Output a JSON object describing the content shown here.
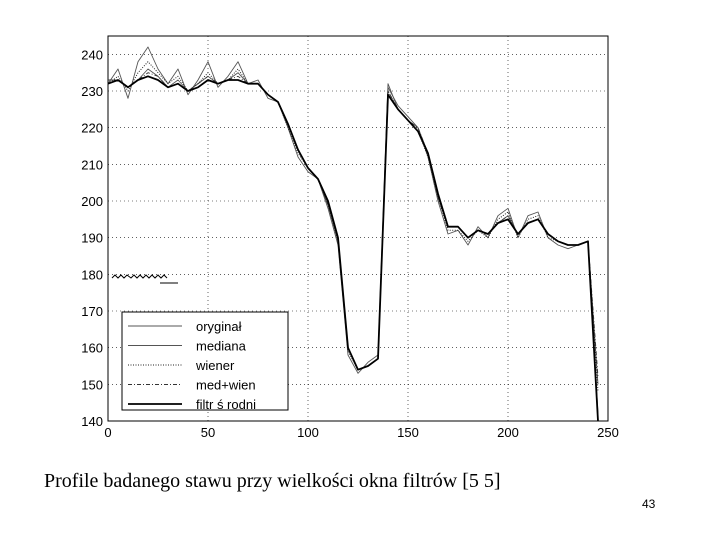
{
  "caption": "Profile badanego stawu przy wielkości okna filtrów [5 5]",
  "page_number": "43",
  "chart_data": {
    "type": "line",
    "title": "",
    "xlabel": "",
    "ylabel": "",
    "xlim": [
      0,
      250
    ],
    "ylim": [
      140,
      245
    ],
    "x_ticks": [
      0,
      50,
      100,
      150,
      200,
      250
    ],
    "y_ticks": [
      140,
      150,
      160,
      170,
      180,
      190,
      200,
      210,
      220,
      230,
      240
    ],
    "grid": true,
    "legend_position": "bottom-left",
    "x": [
      0,
      5,
      10,
      15,
      20,
      25,
      30,
      35,
      40,
      45,
      50,
      55,
      60,
      65,
      70,
      75,
      80,
      85,
      90,
      95,
      100,
      105,
      110,
      115,
      120,
      125,
      130,
      135,
      140,
      145,
      150,
      155,
      160,
      165,
      170,
      175,
      180,
      185,
      190,
      195,
      200,
      205,
      210,
      215,
      220,
      225,
      230,
      235,
      240,
      245
    ],
    "series": [
      {
        "name": "oryginał",
        "style": "solid-thin",
        "values": [
          232,
          236,
          228,
          238,
          242,
          236,
          232,
          236,
          229,
          233,
          238,
          231,
          234,
          238,
          232,
          233,
          228,
          227,
          220,
          212,
          208,
          206,
          198,
          188,
          158,
          153,
          156,
          158,
          232,
          225,
          222,
          220,
          212,
          200,
          191,
          192,
          188,
          193,
          190,
          196,
          198,
          190,
          196,
          197,
          190,
          188,
          187,
          188,
          189,
          142
        ]
      },
      {
        "name": "mediana",
        "style": "solid-thin",
        "values": [
          233,
          233,
          231,
          233,
          236,
          234,
          231,
          233,
          230,
          232,
          234,
          232,
          233,
          235,
          232,
          232,
          229,
          227,
          221,
          214,
          209,
          206,
          199,
          189,
          160,
          154,
          155,
          157,
          231,
          226,
          223,
          220,
          213,
          201,
          193,
          193,
          190,
          192,
          191,
          194,
          196,
          191,
          194,
          195,
          191,
          189,
          188,
          188,
          189,
          150
        ]
      },
      {
        "name": "wiener",
        "style": "dotted",
        "values": [
          232,
          234,
          230,
          235,
          238,
          235,
          232,
          234,
          230,
          232,
          235,
          232,
          233,
          236,
          232,
          232,
          229,
          227,
          220,
          213,
          209,
          206,
          199,
          189,
          159,
          154,
          155,
          157,
          230,
          225,
          222,
          219,
          212,
          201,
          192,
          192,
          189,
          192,
          190,
          195,
          197,
          190,
          195,
          196,
          190,
          189,
          188,
          188,
          189,
          148
        ]
      },
      {
        "name": "med+wien",
        "style": "dash-dot",
        "values": [
          233,
          233,
          231,
          233,
          235,
          234,
          231,
          232,
          230,
          232,
          234,
          232,
          233,
          234,
          232,
          232,
          229,
          227,
          221,
          214,
          209,
          206,
          199,
          190,
          160,
          154,
          155,
          157,
          230,
          225,
          222,
          220,
          213,
          201,
          193,
          193,
          190,
          192,
          191,
          194,
          196,
          191,
          194,
          195,
          191,
          189,
          188,
          188,
          189,
          152
        ]
      },
      {
        "name": "filtr ś rodni",
        "style": "solid-thick",
        "values": [
          232,
          233,
          231,
          233,
          234,
          233,
          231,
          232,
          230,
          231,
          233,
          232,
          233,
          233,
          232,
          232,
          229,
          227,
          221,
          214,
          209,
          206,
          200,
          190,
          160,
          154,
          155,
          157,
          229,
          225,
          222,
          219,
          213,
          202,
          193,
          193,
          190,
          192,
          191,
          194,
          195,
          191,
          194,
          195,
          191,
          189,
          188,
          188,
          189,
          140
        ]
      }
    ]
  }
}
